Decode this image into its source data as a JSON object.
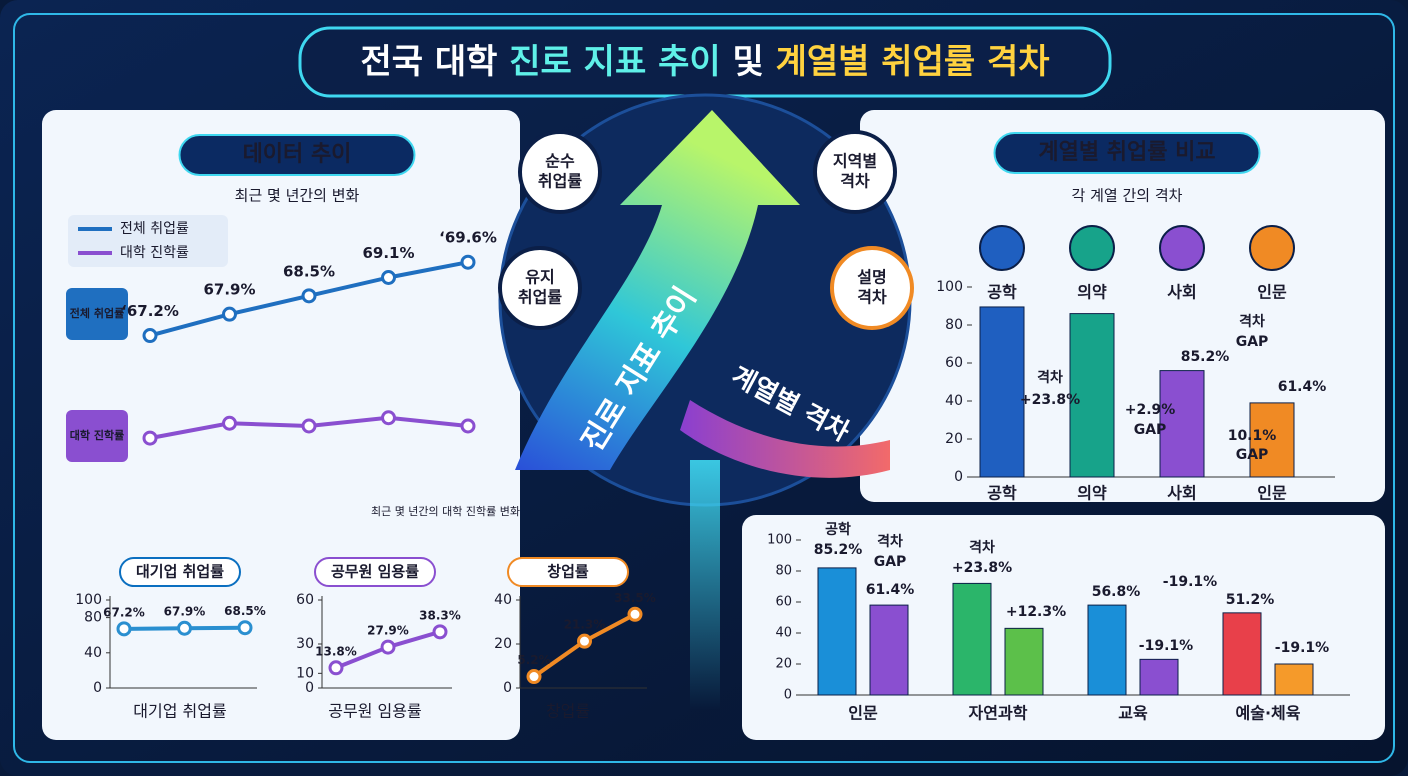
{
  "title_parts": [
    "전국 대학",
    "진로 지표 추이",
    "및",
    "계열별 취업률 격차"
  ],
  "bubbles": [
    [
      "순수",
      "취업률"
    ],
    [
      "유지",
      "취업률"
    ],
    [
      "지역별",
      "격차"
    ],
    [
      "설명",
      "격차"
    ]
  ],
  "arrow_labels": [
    "진로 지표 추이",
    "계열별 격차"
  ],
  "chart_data": [
    {
      "type": "line",
      "title": "데이터 추이",
      "subtitle": "최근 몇 년간의 변화",
      "series": [
        {
          "name": "전체 취업률",
          "color": "#1f6fc0",
          "values": [
            67.2,
            67.9,
            68.5,
            69.1,
            69.6
          ],
          "value_labels": [
            "‘67.2%",
            "67.9%",
            "68.5%",
            "69.1%",
            "‘69.6%"
          ]
        },
        {
          "name": "대학 진학률",
          "color": "#8a4fd0",
          "axis": "y2",
          "values": [
            5.8,
            8.5,
            8,
            9.5,
            8
          ]
        }
      ],
      "ylim": [
        62.8,
        70
      ],
      "y2lim": [
        0,
        40
      ],
      "annotation": "최근 몇 년간의 대학 진학률 변화"
    },
    {
      "type": "line",
      "title": "대기업 취업률",
      "xlabel": "대기업 취업률",
      "color": "#2a8fd0",
      "values": [
        67.2,
        67.9,
        68.5
      ],
      "value_labels": [
        "67.2%",
        "67.9%",
        "68.5%"
      ],
      "ylim": [
        0,
        100
      ],
      "yticks": [
        0,
        40,
        80,
        100
      ]
    },
    {
      "type": "line",
      "title": "공무원 임용률",
      "xlabel": "공무원 임용률",
      "color": "#8a4fd0",
      "values": [
        13.8,
        27.9,
        38.3
      ],
      "value_labels": [
        "13.8%",
        "27.9%",
        "38.3%"
      ],
      "ylim": [
        0,
        60
      ],
      "yticks": [
        0,
        10,
        30,
        60
      ]
    },
    {
      "type": "line",
      "title": "창업률",
      "xlabel": "창업률",
      "color": "#f08a24",
      "values": [
        5.2,
        21.3,
        33.5
      ],
      "value_labels": [
        "5.2%",
        "21.3%",
        "33.5%"
      ],
      "ylim": [
        0,
        40
      ],
      "yticks": [
        0,
        20,
        40
      ]
    },
    {
      "type": "bar",
      "title": "계열별 취업률 비교",
      "subtitle": "각 계열 간의 격차",
      "categories": [
        "공학",
        "의약",
        "사회",
        "인문"
      ],
      "values": [
        89.5,
        86,
        56,
        39
      ],
      "colors": [
        "#1f5fc0",
        "#17a38a",
        "#8a4fd0",
        "#f08a24"
      ],
      "ylim": [
        0,
        100
      ],
      "yticks": [
        0,
        20,
        40,
        60,
        80,
        100
      ],
      "annotations": [
        "격차",
        "+23.8%",
        "+2.9%",
        "GAP",
        "85.2%",
        "격차",
        "GAP",
        "10.1%",
        "GAP",
        "61.4%"
      ]
    },
    {
      "type": "grouped_bar",
      "categories": [
        "인문",
        "자연과학",
        "교육",
        "예술·체육"
      ],
      "series": [
        {
          "colors": [
            "#1a8fd8",
            "#2bb56a",
            "#1a8fd8",
            "#e8404a"
          ],
          "values": [
            82,
            72,
            58,
            53
          ]
        },
        {
          "colors": [
            "#8a4fd0",
            "#5cc04a",
            "#8a4fd0",
            "#f59a2a"
          ],
          "values": [
            58,
            43,
            23,
            20
          ]
        }
      ],
      "ylim": [
        0,
        100
      ],
      "yticks": [
        0,
        20,
        40,
        60,
        80,
        100
      ],
      "annotations": [
        "공학",
        "85.2%",
        "격차",
        "GAP",
        "61.4%",
        "격차",
        "+23.8%",
        "+12.3%",
        "56.8%",
        "-19.1%",
        "-19.1%",
        "51.2%",
        "-19.1%"
      ]
    }
  ]
}
